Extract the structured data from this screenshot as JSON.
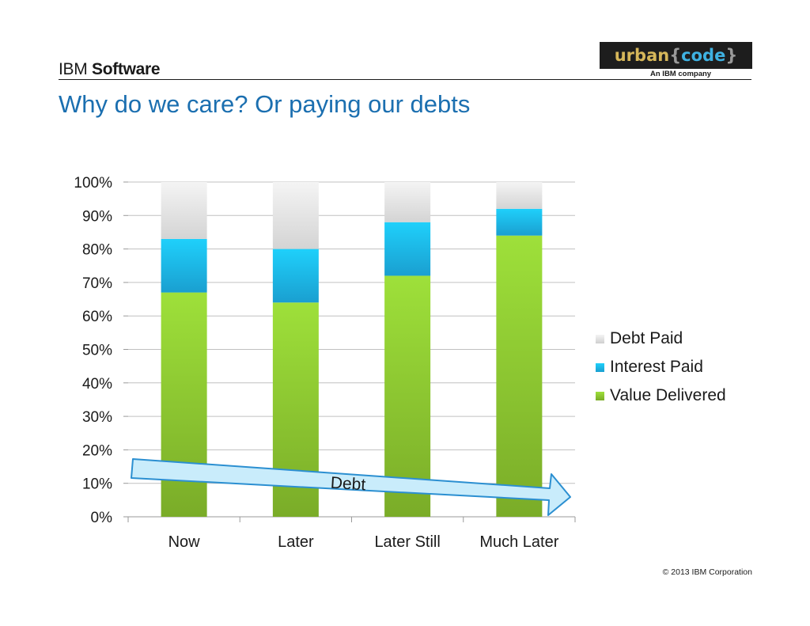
{
  "header": {
    "brand_light": "IBM",
    "brand_bold": "Software",
    "logo_word": "urban",
    "logo_open": "{",
    "logo_code": "code",
    "logo_close": "}",
    "logo_tagline": "An IBM company"
  },
  "title": "Why do we care? Or paying our debts",
  "footer": "© 2013 IBM Corporation",
  "arrow_label": "Debt",
  "colors": {
    "title": "#1b6fb0",
    "value_delivered": "#8dc63f",
    "interest_paid": "#1fb5e3",
    "debt_paid": "#dcdcdc",
    "arrow_fill": "#c9ecfb",
    "arrow_stroke": "#2b8fd1"
  },
  "chart_data": {
    "type": "bar",
    "stacked": true,
    "categories": [
      "Now",
      "Later",
      "Later Still",
      "Much Later"
    ],
    "series": [
      {
        "name": "Value Delivered",
        "values": [
          67,
          64,
          72,
          84
        ]
      },
      {
        "name": "Interest Paid",
        "values": [
          16,
          16,
          16,
          8
        ]
      },
      {
        "name": "Debt Paid",
        "values": [
          17,
          20,
          12,
          8
        ]
      }
    ],
    "ylim": [
      0,
      100
    ],
    "yticks": [
      "0%",
      "10%",
      "20%",
      "30%",
      "40%",
      "50%",
      "60%",
      "70%",
      "80%",
      "90%",
      "100%"
    ],
    "grid": true,
    "legend": [
      "Debt Paid",
      "Interest Paid",
      "Value Delivered"
    ],
    "legend_position": "right"
  }
}
